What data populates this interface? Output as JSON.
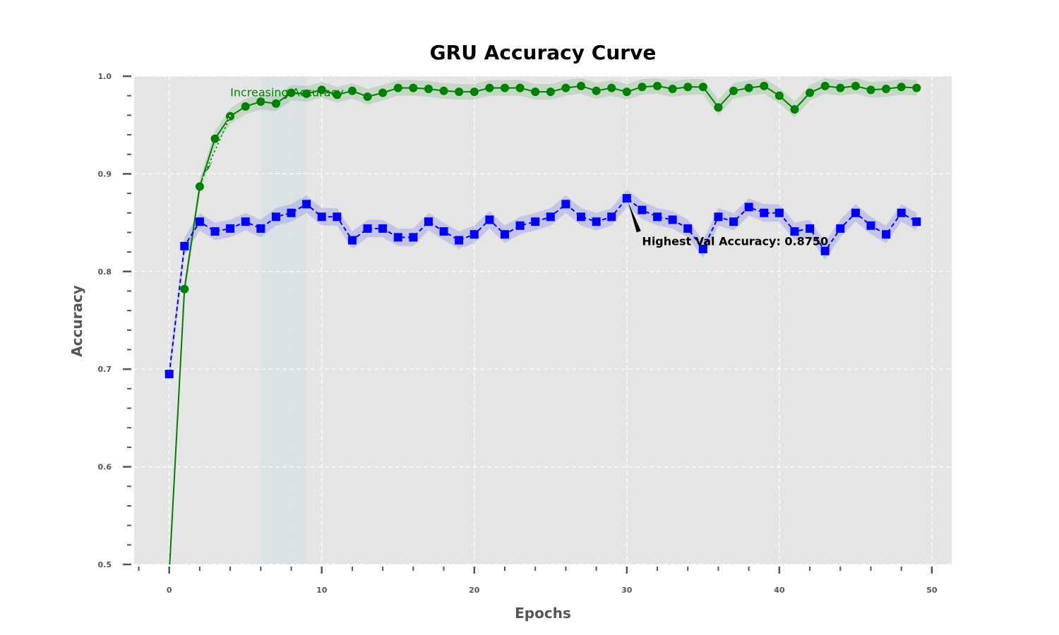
{
  "chart_data": {
    "type": "line",
    "title": "GRU Accuracy Curve",
    "xlabel": "Epochs",
    "ylabel": "Accuracy",
    "xlim": [
      -2.3,
      51.3
    ],
    "ylim": [
      0.5,
      1.0
    ],
    "x_ticks": [
      0,
      10,
      20,
      30,
      40,
      50
    ],
    "y_ticks": [
      0.5,
      0.6,
      0.7,
      0.8,
      0.9,
      1.0
    ],
    "x_tick_labels": [
      "0",
      "10",
      "20",
      "30",
      "40",
      "50"
    ],
    "y_tick_labels": [
      "0.5",
      "0.6",
      "0.7",
      "0.8",
      "0.9",
      "1.0"
    ],
    "grid": true,
    "shaded_region": {
      "x_start": 6,
      "x_end": 9,
      "color": "#add8e6"
    },
    "series": [
      {
        "color": "#008000",
        "marker": "circle",
        "line_style": "solid",
        "band": 0.008,
        "x": [
          0,
          1,
          2,
          3,
          4,
          5,
          6,
          7,
          8,
          9,
          10,
          11,
          12,
          13,
          14,
          15,
          16,
          17,
          18,
          19,
          20,
          21,
          22,
          23,
          24,
          25,
          26,
          27,
          28,
          29,
          30,
          31,
          32,
          33,
          34,
          35,
          36,
          37,
          38,
          39,
          40,
          41,
          42,
          43,
          44,
          45,
          46,
          47,
          48,
          49
        ],
        "values": [
          0.491,
          0.782,
          0.887,
          0.936,
          0.959,
          0.969,
          0.974,
          0.972,
          0.983,
          0.982,
          0.986,
          0.981,
          0.985,
          0.979,
          0.983,
          0.988,
          0.988,
          0.987,
          0.985,
          0.984,
          0.984,
          0.988,
          0.988,
          0.988,
          0.984,
          0.984,
          0.988,
          0.99,
          0.985,
          0.988,
          0.984,
          0.989,
          0.99,
          0.987,
          0.989,
          0.989,
          0.968,
          0.985,
          0.988,
          0.99,
          0.98,
          0.966,
          0.983,
          0.99,
          0.988,
          0.99,
          0.986,
          0.987,
          0.989,
          0.988
        ]
      },
      {
        "color": "#0000ff",
        "marker": "square",
        "line_style": "dashed",
        "band": 0.009,
        "x": [
          0,
          1,
          2,
          3,
          4,
          5,
          6,
          7,
          8,
          9,
          10,
          11,
          12,
          13,
          14,
          15,
          16,
          17,
          18,
          19,
          20,
          21,
          22,
          23,
          24,
          25,
          26,
          27,
          28,
          29,
          30,
          31,
          32,
          33,
          34,
          35,
          36,
          37,
          38,
          39,
          40,
          41,
          42,
          43,
          44,
          45,
          46,
          47,
          48,
          49
        ],
        "values": [
          0.695,
          0.826,
          0.851,
          0.841,
          0.844,
          0.851,
          0.844,
          0.856,
          0.86,
          0.869,
          0.856,
          0.856,
          0.832,
          0.844,
          0.844,
          0.835,
          0.835,
          0.851,
          0.841,
          0.832,
          0.838,
          0.853,
          0.838,
          0.847,
          0.851,
          0.856,
          0.869,
          0.856,
          0.851,
          0.856,
          0.875,
          0.863,
          0.856,
          0.853,
          0.844,
          0.823,
          0.856,
          0.851,
          0.866,
          0.86,
          0.86,
          0.841,
          0.844,
          0.821,
          0.844,
          0.86,
          0.847,
          0.838,
          0.86,
          0.851
        ]
      }
    ],
    "annotations": [
      {
        "text": "Increasing Accuracy",
        "x": 4,
        "y": 0.981,
        "color": "#008000",
        "arrow_from": [
          4,
          0.96
        ],
        "arrow_to": [
          2,
          0.887
        ]
      },
      {
        "text": "Highest Val Accuracy: 0.8750",
        "x": 30,
        "y": 0.875,
        "text_x": 31,
        "text_y": 0.827,
        "color": "#000000"
      }
    ]
  }
}
